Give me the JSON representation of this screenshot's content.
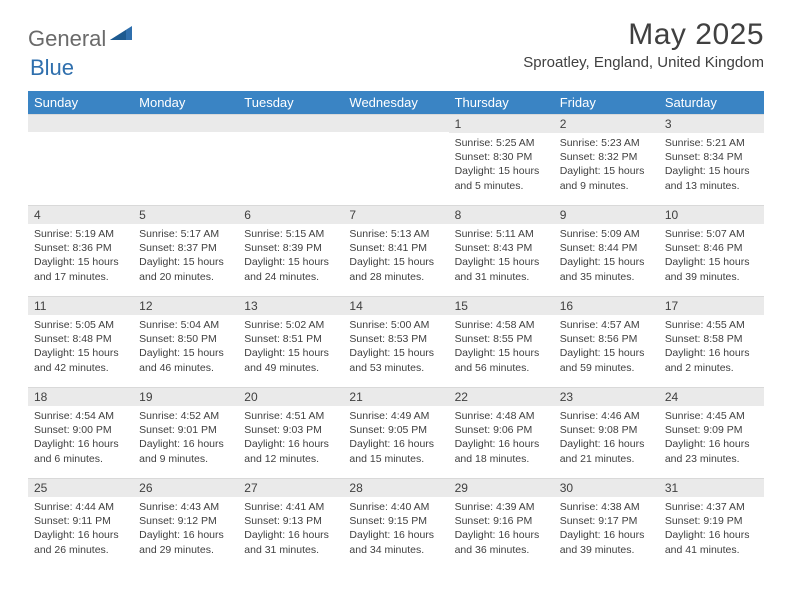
{
  "logo": {
    "text1": "General",
    "text2": "Blue"
  },
  "title": "May 2025",
  "location": "Sproatley, England, United Kingdom",
  "header_bg": "#3a84c4",
  "daybar_bg": "#eaeaea",
  "text_color": "#404040",
  "weekdays": [
    "Sunday",
    "Monday",
    "Tuesday",
    "Wednesday",
    "Thursday",
    "Friday",
    "Saturday"
  ],
  "weeks": [
    [
      null,
      null,
      null,
      null,
      {
        "d": "1",
        "sr": "5:25 AM",
        "ss": "8:30 PM",
        "dl": "15 hours and 5 minutes."
      },
      {
        "d": "2",
        "sr": "5:23 AM",
        "ss": "8:32 PM",
        "dl": "15 hours and 9 minutes."
      },
      {
        "d": "3",
        "sr": "5:21 AM",
        "ss": "8:34 PM",
        "dl": "15 hours and 13 minutes."
      }
    ],
    [
      {
        "d": "4",
        "sr": "5:19 AM",
        "ss": "8:36 PM",
        "dl": "15 hours and 17 minutes."
      },
      {
        "d": "5",
        "sr": "5:17 AM",
        "ss": "8:37 PM",
        "dl": "15 hours and 20 minutes."
      },
      {
        "d": "6",
        "sr": "5:15 AM",
        "ss": "8:39 PM",
        "dl": "15 hours and 24 minutes."
      },
      {
        "d": "7",
        "sr": "5:13 AM",
        "ss": "8:41 PM",
        "dl": "15 hours and 28 minutes."
      },
      {
        "d": "8",
        "sr": "5:11 AM",
        "ss": "8:43 PM",
        "dl": "15 hours and 31 minutes."
      },
      {
        "d": "9",
        "sr": "5:09 AM",
        "ss": "8:44 PM",
        "dl": "15 hours and 35 minutes."
      },
      {
        "d": "10",
        "sr": "5:07 AM",
        "ss": "8:46 PM",
        "dl": "15 hours and 39 minutes."
      }
    ],
    [
      {
        "d": "11",
        "sr": "5:05 AM",
        "ss": "8:48 PM",
        "dl": "15 hours and 42 minutes."
      },
      {
        "d": "12",
        "sr": "5:04 AM",
        "ss": "8:50 PM",
        "dl": "15 hours and 46 minutes."
      },
      {
        "d": "13",
        "sr": "5:02 AM",
        "ss": "8:51 PM",
        "dl": "15 hours and 49 minutes."
      },
      {
        "d": "14",
        "sr": "5:00 AM",
        "ss": "8:53 PM",
        "dl": "15 hours and 53 minutes."
      },
      {
        "d": "15",
        "sr": "4:58 AM",
        "ss": "8:55 PM",
        "dl": "15 hours and 56 minutes."
      },
      {
        "d": "16",
        "sr": "4:57 AM",
        "ss": "8:56 PM",
        "dl": "15 hours and 59 minutes."
      },
      {
        "d": "17",
        "sr": "4:55 AM",
        "ss": "8:58 PM",
        "dl": "16 hours and 2 minutes."
      }
    ],
    [
      {
        "d": "18",
        "sr": "4:54 AM",
        "ss": "9:00 PM",
        "dl": "16 hours and 6 minutes."
      },
      {
        "d": "19",
        "sr": "4:52 AM",
        "ss": "9:01 PM",
        "dl": "16 hours and 9 minutes."
      },
      {
        "d": "20",
        "sr": "4:51 AM",
        "ss": "9:03 PM",
        "dl": "16 hours and 12 minutes."
      },
      {
        "d": "21",
        "sr": "4:49 AM",
        "ss": "9:05 PM",
        "dl": "16 hours and 15 minutes."
      },
      {
        "d": "22",
        "sr": "4:48 AM",
        "ss": "9:06 PM",
        "dl": "16 hours and 18 minutes."
      },
      {
        "d": "23",
        "sr": "4:46 AM",
        "ss": "9:08 PM",
        "dl": "16 hours and 21 minutes."
      },
      {
        "d": "24",
        "sr": "4:45 AM",
        "ss": "9:09 PM",
        "dl": "16 hours and 23 minutes."
      }
    ],
    [
      {
        "d": "25",
        "sr": "4:44 AM",
        "ss": "9:11 PM",
        "dl": "16 hours and 26 minutes."
      },
      {
        "d": "26",
        "sr": "4:43 AM",
        "ss": "9:12 PM",
        "dl": "16 hours and 29 minutes."
      },
      {
        "d": "27",
        "sr": "4:41 AM",
        "ss": "9:13 PM",
        "dl": "16 hours and 31 minutes."
      },
      {
        "d": "28",
        "sr": "4:40 AM",
        "ss": "9:15 PM",
        "dl": "16 hours and 34 minutes."
      },
      {
        "d": "29",
        "sr": "4:39 AM",
        "ss": "9:16 PM",
        "dl": "16 hours and 36 minutes."
      },
      {
        "d": "30",
        "sr": "4:38 AM",
        "ss": "9:17 PM",
        "dl": "16 hours and 39 minutes."
      },
      {
        "d": "31",
        "sr": "4:37 AM",
        "ss": "9:19 PM",
        "dl": "16 hours and 41 minutes."
      }
    ]
  ],
  "labels": {
    "sunrise": "Sunrise:",
    "sunset": "Sunset:",
    "daylight": "Daylight:"
  }
}
